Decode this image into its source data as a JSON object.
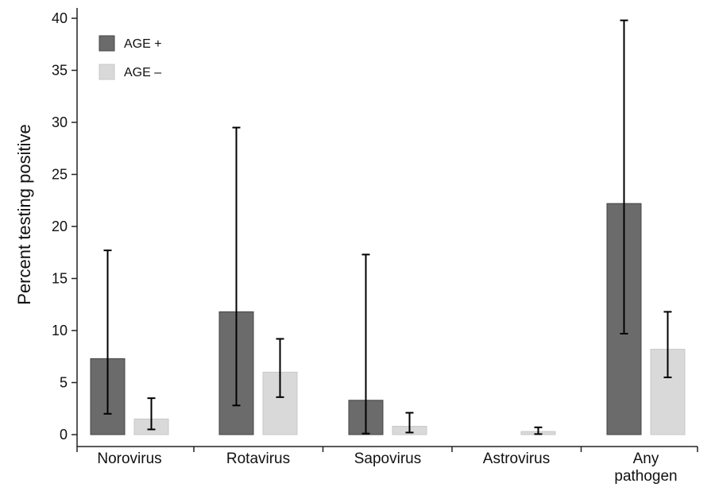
{
  "chart_data": {
    "type": "bar",
    "ylabel": "Percent testing positive",
    "xlabel": "",
    "ylim": [
      0,
      40
    ],
    "yticks": [
      0,
      5,
      10,
      15,
      20,
      25,
      30,
      35,
      40
    ],
    "grid": false,
    "legend_position": "top-left",
    "categories": [
      [
        "Norovirus"
      ],
      [
        "Rotavirus"
      ],
      [
        "Sapovirus"
      ],
      [
        "Astrovirus"
      ],
      [
        "Any",
        "pathogen"
      ]
    ],
    "series": [
      {
        "name": "AGE +",
        "color": "#6b6b6b",
        "values": [
          7.3,
          11.8,
          3.3,
          0,
          22.2
        ],
        "ci_low": [
          2.0,
          2.8,
          0.1,
          null,
          9.7
        ],
        "ci_high": [
          17.7,
          29.5,
          17.3,
          null,
          39.8
        ]
      },
      {
        "name": "AGE –",
        "color": "#d9d9d9",
        "values": [
          1.5,
          6.0,
          0.8,
          0.3,
          8.2
        ],
        "ci_low": [
          0.5,
          3.6,
          0.2,
          0.05,
          5.5
        ],
        "ci_high": [
          3.5,
          9.2,
          2.1,
          0.7,
          11.8
        ]
      }
    ]
  }
}
